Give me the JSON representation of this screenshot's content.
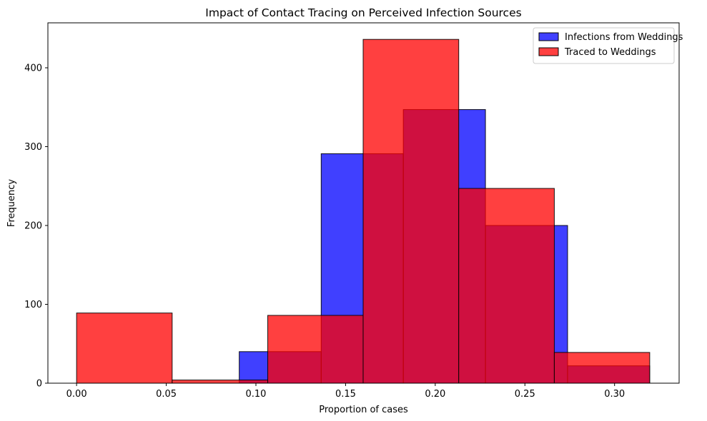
{
  "chart_data": {
    "type": "histogram",
    "title": "Impact of Contact Tracing on Perceived Infection Sources",
    "xlabel": "Proportion of cases",
    "ylabel": "Frequency",
    "xlim": [
      -0.016,
      0.336
    ],
    "ylim": [
      0,
      457
    ],
    "x_ticks": [
      {
        "value": 0.0,
        "label": "0.00"
      },
      {
        "value": 0.05,
        "label": "0.05"
      },
      {
        "value": 0.1,
        "label": "0.10"
      },
      {
        "value": 0.15,
        "label": "0.15"
      },
      {
        "value": 0.2,
        "label": "0.20"
      },
      {
        "value": 0.25,
        "label": "0.25"
      },
      {
        "value": 0.3,
        "label": "0.30"
      }
    ],
    "y_ticks": [
      {
        "value": 0,
        "label": "0"
      },
      {
        "value": 100,
        "label": "100"
      },
      {
        "value": 200,
        "label": "200"
      },
      {
        "value": 300,
        "label": "300"
      },
      {
        "value": 400,
        "label": "400"
      }
    ],
    "grid": false,
    "legend_position": "top-right",
    "series": [
      {
        "name": "Infections from Weddings",
        "color": "#0000ff",
        "opacity": 0.75,
        "bins": [
          {
            "start": 0.0907,
            "end": 0.1364,
            "count": 40
          },
          {
            "start": 0.1364,
            "end": 0.1822,
            "count": 291
          },
          {
            "start": 0.1822,
            "end": 0.228,
            "count": 347
          },
          {
            "start": 0.228,
            "end": 0.2738,
            "count": 200
          },
          {
            "start": 0.2738,
            "end": 0.3196,
            "count": 22
          }
        ]
      },
      {
        "name": "Traced to Weddings",
        "color": "#ff0000",
        "opacity": 0.75,
        "bins": [
          {
            "start": 0.0,
            "end": 0.0533,
            "count": 89
          },
          {
            "start": 0.0533,
            "end": 0.1066,
            "count": 4
          },
          {
            "start": 0.1066,
            "end": 0.1598,
            "count": 86
          },
          {
            "start": 0.1598,
            "end": 0.2131,
            "count": 436
          },
          {
            "start": 0.2131,
            "end": 0.2664,
            "count": 247
          },
          {
            "start": 0.2664,
            "end": 0.3196,
            "count": 39
          }
        ]
      }
    ]
  }
}
